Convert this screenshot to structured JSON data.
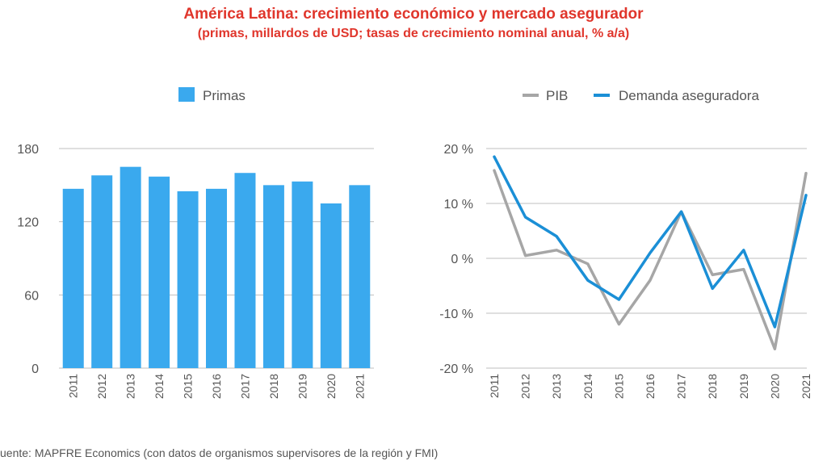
{
  "title": "América Latina: crecimiento económico y mercado asegurador",
  "subtitle": "(primas, millardos de USD; tasas de crecimiento nominal anual, % a/a)",
  "source": "uente: MAPFRE Economics (con datos de organismos supervisores de la región y FMI)",
  "colors": {
    "title": "#e0362c",
    "bars": "#3aa9ee",
    "pib": "#a6a6a6",
    "demanda": "#1b8fd6",
    "grid": "#bfbfbf"
  },
  "chart_data": [
    {
      "type": "bar",
      "categories": [
        "2011",
        "2012",
        "2013",
        "2014",
        "2015",
        "2016",
        "2017",
        "2018",
        "2019",
        "2020",
        "2021"
      ],
      "series": [
        {
          "name": "Primas",
          "values": [
            147,
            158,
            165,
            157,
            145,
            147,
            160,
            150,
            153,
            135,
            150
          ]
        }
      ],
      "yticks": [
        "180",
        "120",
        "60",
        "0"
      ],
      "ylim": [
        0,
        180
      ],
      "legend": "top-center",
      "grid": true
    },
    {
      "type": "line",
      "categories": [
        "2011",
        "2012",
        "2013",
        "2014",
        "2015",
        "2016",
        "2017",
        "2018",
        "2019",
        "2020",
        "2021"
      ],
      "series": [
        {
          "name": "PIB",
          "values": [
            16,
            0.5,
            1.5,
            -1,
            -12,
            -4,
            8.5,
            -3,
            -2,
            -16.5,
            15.5
          ]
        },
        {
          "name": "Demanda aseguradora",
          "values": [
            18.5,
            7.5,
            4,
            -4,
            -7.5,
            1,
            8.5,
            -5.5,
            1.5,
            -12.5,
            11.5
          ]
        }
      ],
      "yticks": [
        "20 %",
        "10 %",
        "0 %",
        "-10 %",
        "-20 %"
      ],
      "ylim": [
        -20,
        20
      ],
      "legend": "top-right",
      "grid": true
    }
  ]
}
